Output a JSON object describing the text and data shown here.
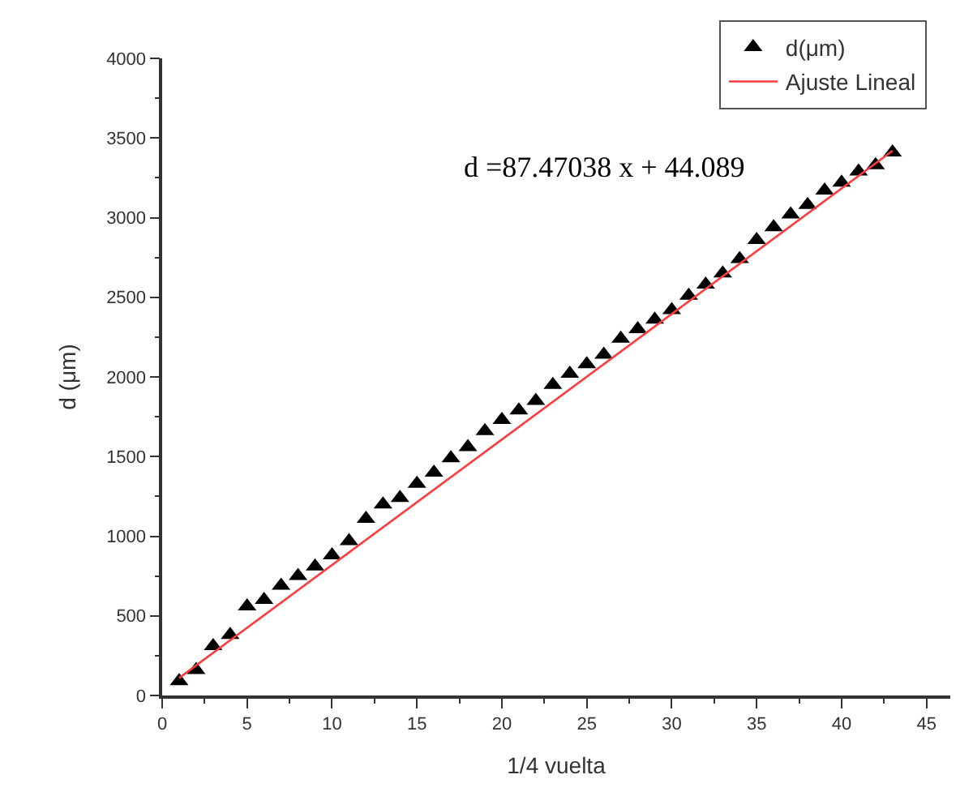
{
  "chart_data": {
    "type": "scatter",
    "xlabel": "1/4 vuelta",
    "ylabel": "d (μm)",
    "xlim": [
      0,
      46.4
    ],
    "xticks": [
      0,
      5,
      10,
      15,
      20,
      25,
      30,
      35,
      40,
      45
    ],
    "ylim": [
      0,
      4000
    ],
    "yticks": [
      0,
      500,
      1000,
      1500,
      2000,
      2500,
      3000,
      3500,
      4000
    ],
    "legend": "top right",
    "annotations": [
      "d =87.47038 x + 44.089"
    ],
    "series": [
      {
        "name": "d(μm)",
        "marker": "triangle",
        "color": "#000000",
        "x": [
          1,
          2,
          3,
          4,
          5,
          6,
          7,
          8,
          9,
          10,
          11,
          12,
          13,
          14,
          15,
          16,
          17,
          18,
          19,
          20,
          21,
          22,
          23,
          24,
          25,
          26,
          27,
          28,
          29,
          30,
          31,
          32,
          33,
          34,
          35,
          36,
          37,
          38,
          39,
          40,
          41,
          42,
          43
        ],
        "values": [
          90,
          160,
          310,
          380,
          560,
          600,
          690,
          750,
          810,
          880,
          970,
          1110,
          1200,
          1240,
          1330,
          1400,
          1490,
          1560,
          1660,
          1730,
          1790,
          1850,
          1950,
          2020,
          2080,
          2140,
          2240,
          2300,
          2360,
          2420,
          2510,
          2580,
          2650,
          2740,
          2860,
          2940,
          3020,
          3080,
          3170,
          3220,
          3290,
          3330,
          3410
        ]
      },
      {
        "name": "Ajuste Lineal",
        "type": "line",
        "color": "#ff3b3b",
        "marker": "none",
        "line_style": "solid",
        "x": [
          1,
          43
        ],
        "values": [
          110,
          3420
        ]
      }
    ]
  }
}
